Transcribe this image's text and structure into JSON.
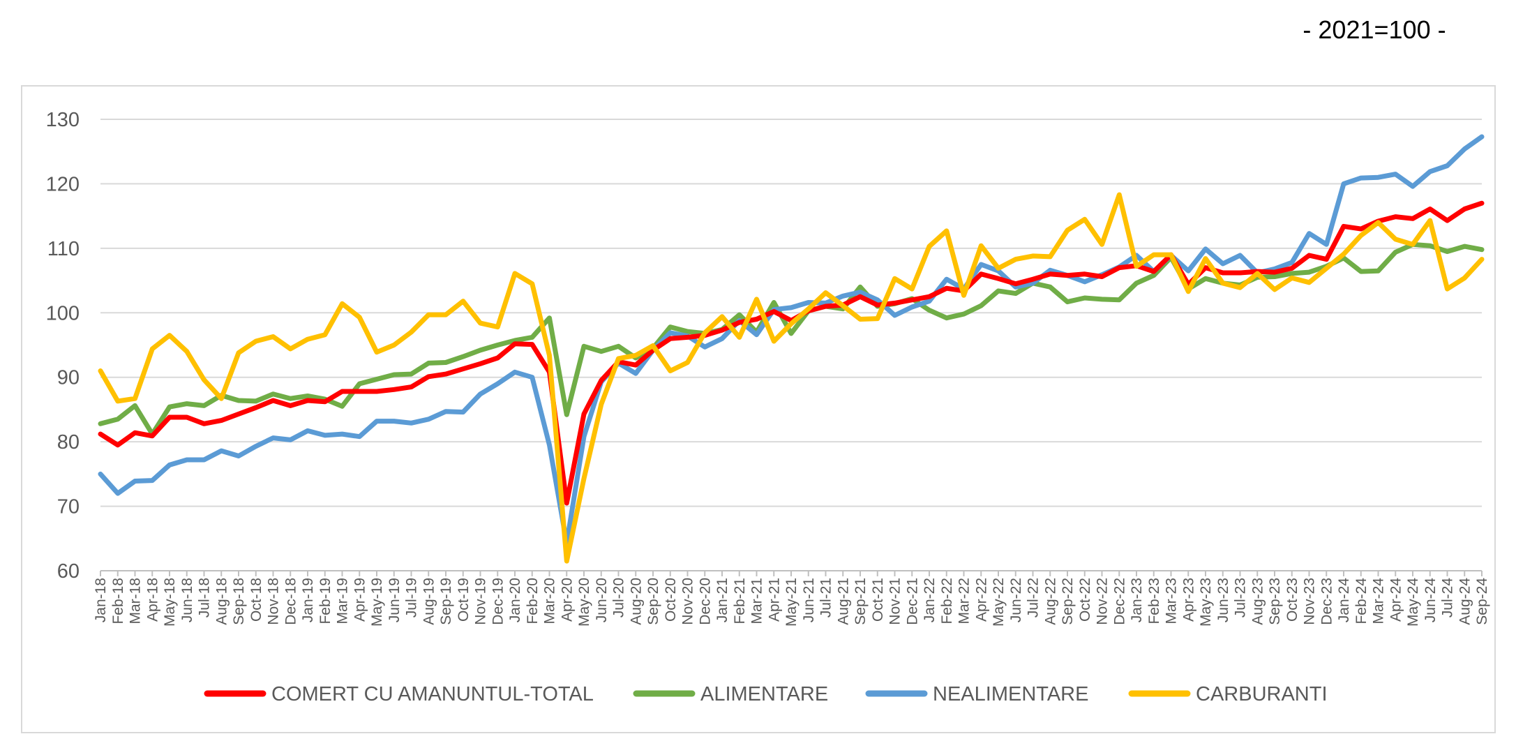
{
  "base_note": "- 2021=100 -",
  "chart_data": {
    "type": "line",
    "title": "",
    "xlabel": "",
    "ylabel": "",
    "ylim": [
      60,
      130
    ],
    "yticks": [
      60,
      70,
      80,
      90,
      100,
      110,
      120,
      130
    ],
    "grid": true,
    "legend_position": "bottom",
    "x": [
      "Jan-18",
      "Feb-18",
      "Mar-18",
      "Apr-18",
      "May-18",
      "Jun-18",
      "Jul-18",
      "Aug-18",
      "Sep-18",
      "Oct-18",
      "Nov-18",
      "Dec-18",
      "Jan-19",
      "Feb-19",
      "Mar-19",
      "Apr-19",
      "May-19",
      "Jun-19",
      "Jul-19",
      "Aug-19",
      "Sep-19",
      "Oct-19",
      "Nov-19",
      "Dec-19",
      "Jan-20",
      "Feb-20",
      "Mar-20",
      "Apr-20",
      "May-20",
      "Jun-20",
      "Jul-20",
      "Aug-20",
      "Sep-20",
      "Oct-20",
      "Nov-20",
      "Dec-20",
      "Jan-21",
      "Feb-21",
      "Mar-21",
      "Apr-21",
      "May-21",
      "Jun-21",
      "Jul-21",
      "Aug-21",
      "Sep-21",
      "Oct-21",
      "Nov-21",
      "Dec-21",
      "Jan-22",
      "Feb-22",
      "Mar-22",
      "Apr-22",
      "May-22",
      "Jun-22",
      "Jul-22",
      "Aug-22",
      "Sep-22",
      "Oct-22",
      "Nov-22",
      "Dec-22",
      "Jan-23",
      "Feb-23",
      "Mar-23",
      "Apr-23",
      "May-23",
      "Jun-23",
      "Jul-23",
      "Aug-23",
      "Sep-23",
      "Oct-23",
      "Nov-23",
      "Dec-23",
      "Jan-24",
      "Feb-24",
      "Mar-24",
      "Apr-24",
      "May-24",
      "Jun-24",
      "Jul-24",
      "Aug-24",
      "Sep-24"
    ],
    "series": [
      {
        "name": "COMERT CU AMANUNTUL-TOTAL",
        "color": "#ff0000",
        "values": [
          81.2,
          79.5,
          81.4,
          80.9,
          83.8,
          83.8,
          82.8,
          83.3,
          84.3,
          85.3,
          86.4,
          85.6,
          86.4,
          86.2,
          87.8,
          87.8,
          87.8,
          88.1,
          88.5,
          90.1,
          90.5,
          91.3,
          92.1,
          93.0,
          95.2,
          95.1,
          90.8,
          70.5,
          84.3,
          89.5,
          92.4,
          91.9,
          94.2,
          96.0,
          96.2,
          96.5,
          97.3,
          98.5,
          99.0,
          100.2,
          98.8,
          100.3,
          101.0,
          101.2,
          102.5,
          101.2,
          101.5,
          102.0,
          102.5,
          103.8,
          103.4,
          106.0,
          105.3,
          104.5,
          105.2,
          106.0,
          105.8,
          106.0,
          105.6,
          107.0,
          107.3,
          106.4,
          109.0,
          104.4,
          107.0,
          106.2,
          106.2,
          106.4,
          106.3,
          106.9,
          108.9,
          108.3,
          113.4,
          113.0,
          114.2,
          114.9,
          114.6,
          116.1,
          114.3,
          116.1,
          117.0
        ]
      },
      {
        "name": "ALIMENTARE",
        "color": "#70ad47",
        "values": [
          82.8,
          83.5,
          85.6,
          81.2,
          85.4,
          85.9,
          85.6,
          87.2,
          86.4,
          86.3,
          87.4,
          86.7,
          87.1,
          86.6,
          85.5,
          89.0,
          89.7,
          90.4,
          90.5,
          92.2,
          92.3,
          93.2,
          94.2,
          95.0,
          95.7,
          96.2,
          99.2,
          84.2,
          94.8,
          94.0,
          94.8,
          93.0,
          94.5,
          97.8,
          97.1,
          96.8,
          97.4,
          99.7,
          97.0,
          101.6,
          96.8,
          100.3,
          101.0,
          100.6,
          104.0,
          101.0,
          101.4,
          102.2,
          100.4,
          99.2,
          99.8,
          101.1,
          103.4,
          103.0,
          104.6,
          104.0,
          101.7,
          102.3,
          102.1,
          102.0,
          104.6,
          105.8,
          108.6,
          103.7,
          105.3,
          104.6,
          104.3,
          105.5,
          105.6,
          106.1,
          106.3,
          107.2,
          108.5,
          106.4,
          106.5,
          109.4,
          110.6,
          110.4,
          109.5,
          110.3,
          109.8
        ]
      },
      {
        "name": "NEALIMENTARE",
        "color": "#5b9bd5",
        "values": [
          75.0,
          72.0,
          73.9,
          74.0,
          76.4,
          77.2,
          77.2,
          78.6,
          77.8,
          79.3,
          80.6,
          80.3,
          81.7,
          81.0,
          81.2,
          80.8,
          83.2,
          83.2,
          82.9,
          83.5,
          84.7,
          84.6,
          87.4,
          89.0,
          90.8,
          90.0,
          79.5,
          64.3,
          80.8,
          89.3,
          92.2,
          90.6,
          94.2,
          96.9,
          96.4,
          94.7,
          96.0,
          98.8,
          96.6,
          100.5,
          100.8,
          101.6,
          101.5,
          102.6,
          103.2,
          102.0,
          99.6,
          100.9,
          101.8,
          105.2,
          103.7,
          107.5,
          106.5,
          104.0,
          104.6,
          106.6,
          105.8,
          104.8,
          105.9,
          107.1,
          108.9,
          106.4,
          108.9,
          106.5,
          109.9,
          107.6,
          108.9,
          106.2,
          106.8,
          107.8,
          112.3,
          110.6,
          120.0,
          120.9,
          121.0,
          121.5,
          119.6,
          121.9,
          122.8,
          125.4,
          127.3
        ]
      },
      {
        "name": "CARBURANTI",
        "color": "#ffc000",
        "values": [
          91.0,
          86.3,
          86.7,
          94.4,
          96.5,
          94.0,
          89.6,
          86.7,
          93.8,
          95.6,
          96.3,
          94.4,
          95.9,
          96.6,
          101.4,
          99.3,
          93.9,
          95.0,
          97.0,
          99.7,
          99.7,
          101.8,
          98.4,
          97.8,
          106.1,
          104.5,
          93.4,
          61.5,
          74.3,
          85.8,
          92.9,
          93.4,
          94.9,
          91.0,
          92.3,
          96.9,
          99.4,
          96.2,
          102.1,
          95.6,
          98.3,
          100.6,
          103.1,
          101.1,
          99.0,
          99.1,
          105.3,
          103.7,
          110.3,
          112.7,
          102.7,
          110.4,
          106.9,
          108.3,
          108.8,
          108.7,
          112.8,
          114.5,
          110.6,
          118.3,
          107.2,
          109.0,
          109.0,
          103.3,
          108.4,
          104.6,
          103.9,
          106.1,
          103.6,
          105.4,
          104.7,
          106.9,
          109.1,
          112.0,
          114.0,
          111.4,
          110.6,
          114.3,
          103.7,
          105.4,
          108.3
        ]
      }
    ]
  }
}
